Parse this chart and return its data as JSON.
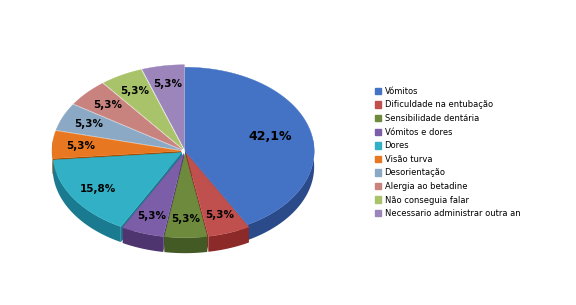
{
  "labels": [
    "Vómitos",
    "Dificuldade na entubação",
    "Sensibilidade dentária",
    "Vómitos e dores",
    "Dores",
    "Visão turva",
    "Desorientação",
    "Alergia ao betadine",
    "Não conseguia falar",
    "Necessario administrar outra an"
  ],
  "values": [
    42.1,
    5.3,
    5.3,
    5.3,
    15.8,
    5.3,
    5.3,
    5.3,
    5.3,
    5.3
  ],
  "colors": [
    "#4472C4",
    "#C0504D",
    "#6E8B3D",
    "#7B5EA7",
    "#31B0C6",
    "#E87722",
    "#8BA9C4",
    "#C9837F",
    "#A8C36A",
    "#9B85BB"
  ],
  "dark_colors": [
    "#2A4A8A",
    "#8B2A28",
    "#445A25",
    "#4E3570",
    "#1A7A90",
    "#A04E00",
    "#5A7A9A",
    "#8A4A48",
    "#6A8A3A",
    "#5A4A80"
  ],
  "startangle": 90,
  "background_color": "#FFFFFF",
  "legend_fontsize": 6.0,
  "pct_fontsize": 7.5,
  "depth": 0.12
}
